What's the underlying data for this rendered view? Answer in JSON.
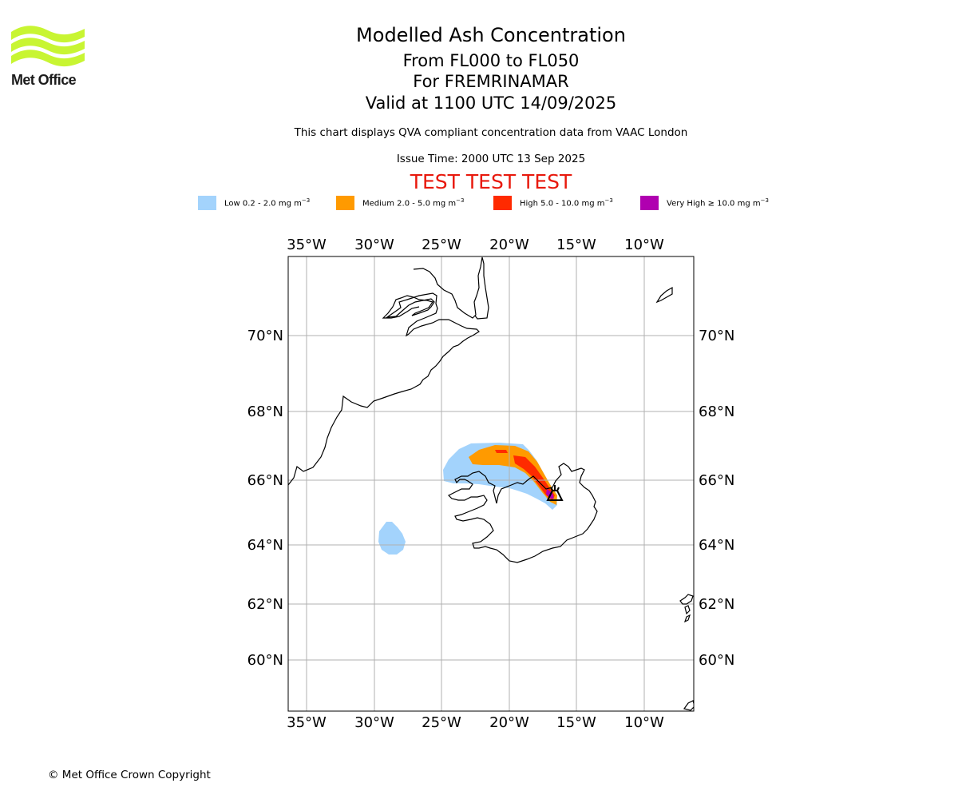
{
  "logo": {
    "text": "Met Office",
    "color": "#c8f532"
  },
  "header": {
    "title": "Modelled Ash Concentration",
    "levels": "From FL000 to FL050",
    "volcano": "For FREMRINAMAR",
    "valid": "Valid at 1100 UTC 14/09/2025",
    "description": "This chart displays QVA compliant concentration data from VAAC London",
    "issue_time": "Issue Time: 2000 UTC 13 Sep 2025",
    "test_banner": "TEST TEST TEST",
    "test_color": "#e8190d"
  },
  "legend": [
    {
      "label": "Low 0.2 - 2.0 mg m",
      "unit_exp": "−3",
      "color": "#a3d3fc"
    },
    {
      "label": "Medium 2.0 - 5.0 mg m",
      "unit_exp": "−3",
      "color": "#ff9a00"
    },
    {
      "label": "High 5.0 - 10.0 mg m",
      "unit_exp": "−3",
      "color": "#ff2a00"
    },
    {
      "label": "Very High ≥ 10.0 mg m",
      "unit_exp": "−3",
      "color": "#b000b0"
    }
  ],
  "map": {
    "lon_ticks": [
      "35°W",
      "30°W",
      "25°W",
      "20°W",
      "15°W",
      "10°W"
    ],
    "lat_ticks": [
      "70°N",
      "68°N",
      "66°N",
      "64°N",
      "62°N",
      "60°N"
    ],
    "volcano_marker": "volcano-icon",
    "gridlines": true
  },
  "footer": {
    "copyright": "© Met Office Crown Copyright"
  }
}
